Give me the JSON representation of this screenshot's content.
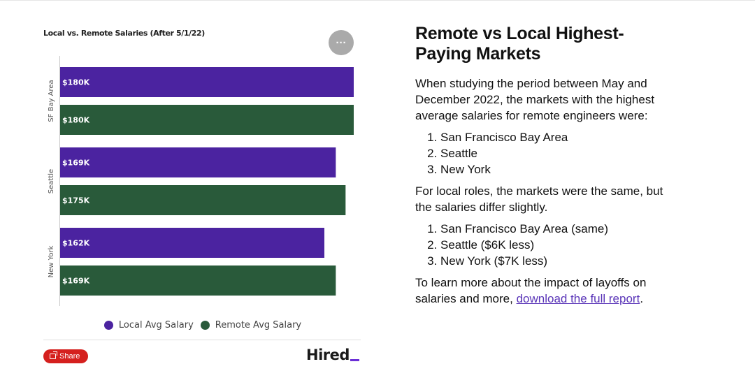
{
  "chart_data": {
    "type": "bar",
    "orientation": "horizontal",
    "title": "Local vs. Remote Salaries (After 5/1/22)",
    "categories": [
      "SF Bay Area",
      "Seattle",
      "New York"
    ],
    "series": [
      {
        "name": "Local Avg Salary",
        "color": "#4b23a0",
        "values": [
          180,
          169,
          162
        ],
        "labels": [
          "$180K",
          "$169K",
          "$162K"
        ]
      },
      {
        "name": "Remote Avg Salary",
        "color": "#295a3a",
        "values": [
          180,
          175,
          169
        ],
        "labels": [
          "$180K",
          "$175K",
          "$169K"
        ]
      }
    ],
    "xlim": [
      0,
      180
    ],
    "grid": false,
    "legend_position": "bottom"
  },
  "chart_ui": {
    "more_icon": "ellipsis-icon",
    "more_glyph": "···",
    "share_label": "Share",
    "share_icon": "share-icon",
    "brand": "Hired"
  },
  "article": {
    "title": "Remote vs Local Highest-Paying Markets",
    "intro": "When studying the period between May and December 2022, the markets with the highest average salaries for remote engineers were:",
    "remote_list": [
      "San Francisco Bay Area",
      "Seattle",
      "New York"
    ],
    "local_intro": "For local roles, the markets were the same, but the salaries differ slightly.",
    "local_list": [
      "San Francisco Bay Area (same)",
      "Seattle ($6K less)",
      "New York ($7K less)"
    ],
    "outro": "To learn more about the impact of layoffs on salaries and more,",
    "link_text": "download the full report",
    "outro_end": "."
  }
}
